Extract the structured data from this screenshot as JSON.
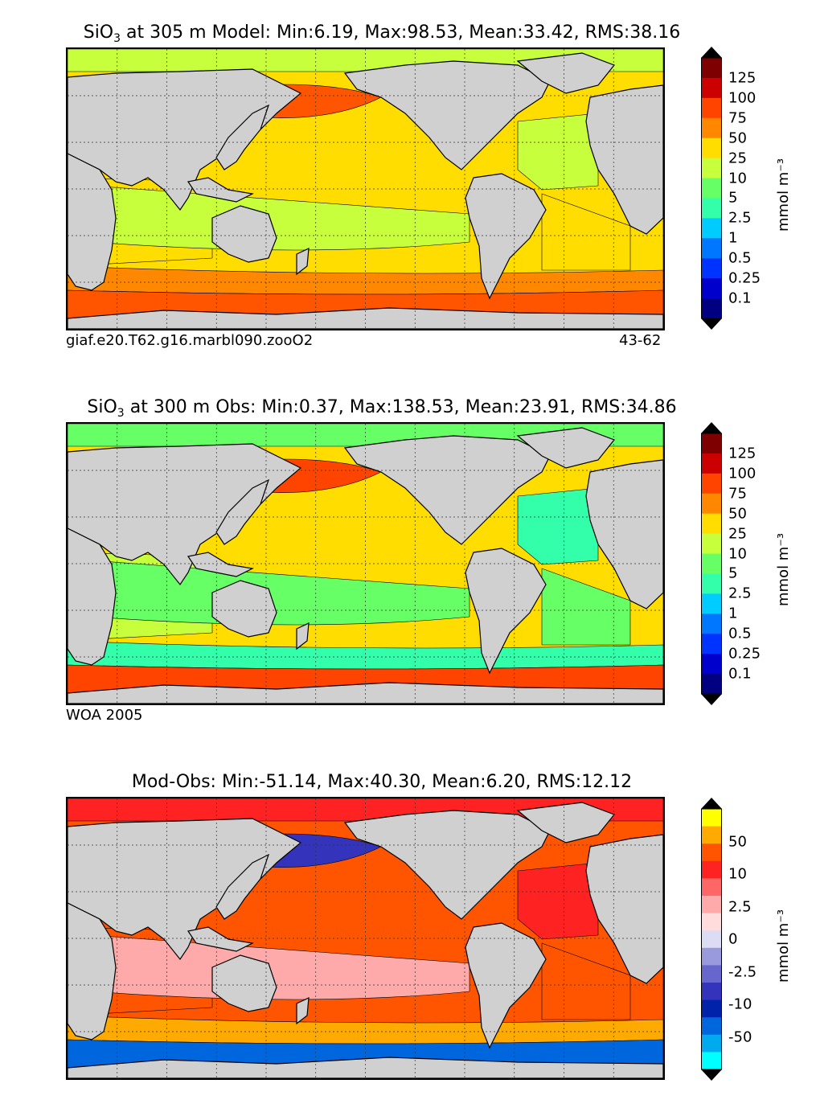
{
  "chart_data": [
    {
      "type": "heatmap",
      "name": "model",
      "title_var": "SiO",
      "title_sub": "3",
      "title_rest": " at 305 m Model: Min:6.19, Max:98.53, Mean:33.42, RMS:38.16",
      "stats": {
        "min": 6.19,
        "max": 98.53,
        "mean": 33.42,
        "rms": 38.16
      },
      "caption_left": "giaf.e20.T62.g16.marbl090.zooO2",
      "caption_right": "43-62",
      "colorbar": {
        "unit": "mmol m⁻³",
        "ticks": [
          "125",
          "100",
          "75",
          "50",
          "25",
          "10",
          "5",
          "2.5",
          "1",
          "0.5",
          "0.25",
          "0.1"
        ],
        "colors": [
          "#7f0000",
          "#cc0000",
          "#ff4400",
          "#ff8800",
          "#ffdd00",
          "#c8ff3c",
          "#66ff66",
          "#33ffaa",
          "#00ccff",
          "#0077ff",
          "#0033ff",
          "#0000cc",
          "#000080"
        ],
        "extend_top": "#000000",
        "extend_bottom": "#000000"
      },
      "field": {
        "polar_north": "#c8ff3c",
        "north_pacific_high": "#ff5500",
        "pacific": "#ffdd00",
        "tropics_band": "#c8ff3c",
        "indian": "#ffdd00",
        "atlantic_north": "#c8ff3c",
        "atlantic_south": "#ffdd00",
        "southern_band": "#ff8800",
        "antarctic": "#ff5500"
      }
    },
    {
      "type": "heatmap",
      "name": "obs",
      "title_var": "SiO",
      "title_sub": "3",
      "title_rest": " at 300 m Obs: Min:0.37, Max:138.53, Mean:23.91, RMS:34.86",
      "stats": {
        "min": 0.37,
        "max": 138.53,
        "mean": 23.91,
        "rms": 34.86
      },
      "caption_left": "WOA 2005",
      "caption_right": "",
      "colorbar": {
        "unit": "mmol m⁻³",
        "ticks": [
          "125",
          "100",
          "75",
          "50",
          "25",
          "10",
          "5",
          "2.5",
          "1",
          "0.5",
          "0.25",
          "0.1"
        ],
        "colors": [
          "#7f0000",
          "#cc0000",
          "#ff4400",
          "#ff8800",
          "#ffdd00",
          "#c8ff3c",
          "#66ff66",
          "#33ffaa",
          "#00ccff",
          "#0077ff",
          "#0033ff",
          "#0000cc",
          "#000080"
        ],
        "extend_top": "#000000",
        "extend_bottom": "#000000"
      },
      "field": {
        "polar_north": "#66ff66",
        "north_pacific_high": "#ff4400",
        "pacific": "#ffdd00",
        "tropics_band": "#66ff66",
        "indian": "#c8ff3c",
        "atlantic_north": "#33ffaa",
        "atlantic_south": "#66ff66",
        "southern_band": "#33ffaa",
        "antarctic": "#ff4400"
      }
    },
    {
      "type": "heatmap",
      "name": "diff",
      "title_var": "",
      "title_sub": "",
      "title_rest": "Mod-Obs: Min:-51.14, Max:40.30, Mean:6.20, RMS:12.12",
      "stats": {
        "min": -51.14,
        "max": 40.3,
        "mean": 6.2,
        "rms": 12.12
      },
      "caption_left": "",
      "caption_right": "",
      "colorbar": {
        "unit": "mmol m⁻³",
        "ticks": [
          "50",
          "10",
          "2.5",
          "0",
          "-2.5",
          "-10",
          "-50"
        ],
        "colors": [
          "#ffff00",
          "#ffaa00",
          "#ff5500",
          "#ff2222",
          "#ff6666",
          "#ffaaaa",
          "#ffdddd",
          "#dcdcf5",
          "#9999dd",
          "#6666cc",
          "#3333bb",
          "#0022aa",
          "#0066dd",
          "#00aaee",
          "#00ffff"
        ],
        "extend_top": "#000000",
        "extend_bottom": "#000000"
      },
      "field": {
        "polar_north": "#ff2222",
        "north_pacific_high": "#3333bb",
        "pacific": "#ff5500",
        "tropics_band": "#ffaaaa",
        "indian": "#ff5500",
        "atlantic_north": "#ff2222",
        "atlantic_south": "#ff5500",
        "southern_band": "#ffaa00",
        "antarctic": "#0066dd"
      }
    }
  ]
}
